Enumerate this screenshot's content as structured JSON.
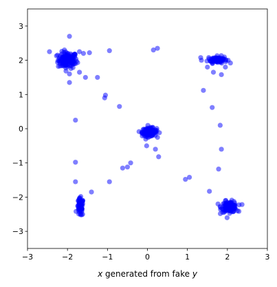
{
  "chart_data": {
    "type": "scatter",
    "title": "",
    "xlabel": "x generated from fake y",
    "xlabel_parts": [
      {
        "text": "x",
        "italic": true
      },
      {
        "text": " generated from fake ",
        "italic": false
      },
      {
        "text": "y",
        "italic": true
      }
    ],
    "ylabel": "",
    "xlim": [
      -3,
      3
    ],
    "ylim": [
      -3.5,
      3.5
    ],
    "xticks": [
      -3,
      -2,
      -1,
      0,
      1,
      2,
      3
    ],
    "yticks": [
      -3,
      -2,
      -1,
      0,
      1,
      2,
      3
    ],
    "grid": false,
    "legend": "none",
    "marker_color": "#0000ff",
    "marker_alpha": 0.5,
    "clusters": [
      {
        "name": "top-left",
        "center": [
          -2.0,
          2.0
        ],
        "spread": [
          0.12,
          0.12
        ],
        "count": 130
      },
      {
        "name": "top-right",
        "center": [
          1.75,
          2.02
        ],
        "spread": [
          0.12,
          0.05
        ],
        "count": 80
      },
      {
        "name": "center",
        "center": [
          0.05,
          -0.1
        ],
        "spread": [
          0.09,
          0.06
        ],
        "count": 160
      },
      {
        "name": "bottom-left",
        "center": [
          -1.68,
          -2.3
        ],
        "spread": [
          0.04,
          0.13
        ],
        "count": 70
      },
      {
        "name": "bottom-right",
        "center": [
          2.05,
          -2.28
        ],
        "spread": [
          0.1,
          0.08
        ],
        "count": 110
      }
    ],
    "outliers": [
      [
        -2.45,
        2.25
      ],
      [
        -1.95,
        2.7
      ],
      [
        -1.7,
        2.25
      ],
      [
        -1.6,
        2.2
      ],
      [
        -1.45,
        2.22
      ],
      [
        -0.95,
        2.28
      ],
      [
        0.15,
        2.3
      ],
      [
        0.25,
        2.35
      ],
      [
        -1.8,
        1.9
      ],
      [
        -1.95,
        1.6
      ],
      [
        -1.7,
        1.65
      ],
      [
        -1.55,
        1.5
      ],
      [
        -1.25,
        1.5
      ],
      [
        -1.05,
        0.98
      ],
      [
        -1.07,
        0.9
      ],
      [
        -0.7,
        0.65
      ],
      [
        -1.95,
        1.35
      ],
      [
        -1.8,
        0.25
      ],
      [
        -1.8,
        -0.98
      ],
      [
        -1.8,
        -1.55
      ],
      [
        -1.4,
        -1.85
      ],
      [
        -0.62,
        -1.15
      ],
      [
        -0.5,
        -1.12
      ],
      [
        -0.42,
        -1.0
      ],
      [
        -0.95,
        -1.55
      ],
      [
        0.28,
        -0.82
      ],
      [
        0.2,
        -0.6
      ],
      [
        -0.02,
        -0.5
      ],
      [
        0.95,
        -1.48
      ],
      [
        1.05,
        -1.42
      ],
      [
        1.55,
        -1.83
      ],
      [
        1.78,
        -1.18
      ],
      [
        1.85,
        -0.6
      ],
      [
        1.82,
        0.1
      ],
      [
        1.62,
        0.62
      ],
      [
        1.4,
        1.12
      ],
      [
        1.35,
        2.0
      ],
      [
        1.5,
        1.8
      ],
      [
        1.65,
        1.65
      ],
      [
        1.85,
        1.58
      ],
      [
        1.95,
        1.8
      ],
      [
        1.95,
        -2.1
      ],
      [
        2.25,
        -2.4
      ]
    ]
  }
}
